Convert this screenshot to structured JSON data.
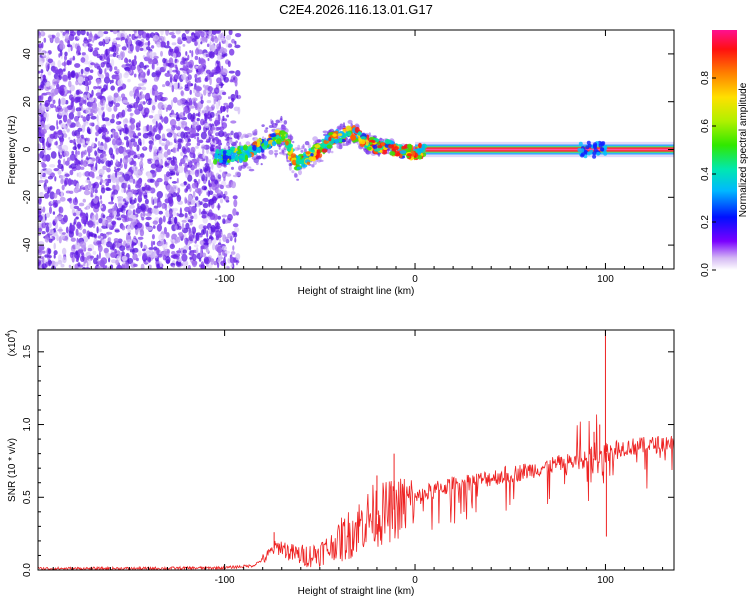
{
  "title": "C2E4.2026.116.13.01.G17",
  "chart_data": [
    {
      "type": "heatmap",
      "title": "C2E4.2026.116.13.01.G17",
      "xlabel": "Height of straight line (km)",
      "ylabel": "Frequency (Hz)",
      "xlim": [
        -198,
        136
      ],
      "ylim": [
        -50,
        50
      ],
      "xticks": [
        -100,
        0,
        100
      ],
      "xtick_labels": [
        "-100",
        "0",
        "100"
      ],
      "yticks": [
        -40,
        -20,
        0,
        20,
        40
      ],
      "ytick_labels": [
        "-40",
        "-20",
        "0",
        "20",
        "40"
      ],
      "noise_region_x": [
        -198,
        -92
      ],
      "signal_track": {
        "x": [
          -110,
          -100,
          -95,
          -90,
          -85,
          -80,
          -75,
          -70,
          -68,
          -65,
          -62,
          -60,
          -57,
          -54,
          -50,
          -46,
          -42,
          -38,
          -34,
          -30,
          -26,
          -22,
          -18,
          -14,
          -10,
          -6,
          -2,
          2,
          6,
          10,
          20,
          40,
          60,
          80,
          100,
          120,
          136
        ],
        "y": [
          -3,
          -3,
          -2,
          -2,
          0,
          2,
          4,
          6,
          5,
          -2,
          -6,
          -5,
          -4,
          -2,
          0,
          3,
          5,
          6,
          7,
          6,
          3,
          2,
          1,
          1,
          0,
          -1,
          -1,
          -1,
          0,
          0,
          0,
          0,
          0,
          0,
          0,
          0,
          0
        ]
      },
      "colorbar": {
        "label": "Normalized spectral amplitude",
        "range": [
          0.0,
          1.0
        ],
        "ticks": [
          0.0,
          0.2,
          0.4,
          0.6,
          0.8
        ],
        "tick_labels": [
          "0.0",
          "0.2",
          "0.4",
          "0.6",
          "0.8"
        ]
      }
    },
    {
      "type": "line",
      "xlabel": "Height of straight line (km)",
      "ylabel": "SNR (10 * v/v)",
      "exponent_label": "(x10",
      "exponent_power": "4",
      "xlim": [
        -198,
        136
      ],
      "ylim": [
        0.0,
        1.65
      ],
      "xticks": [
        -100,
        0,
        100
      ],
      "xtick_labels": [
        "-100",
        "0",
        "100"
      ],
      "yticks": [
        0.0,
        0.5,
        1.0,
        1.5
      ],
      "ytick_labels": [
        "0.0",
        "0.5",
        "1.0",
        "1.5"
      ],
      "color": "#ee2222",
      "series": [
        {
          "name": "SNR",
          "x": [
            -198,
            -150,
            -100,
            -85,
            -78,
            -74,
            -70,
            -66,
            -60,
            -55,
            -50,
            -45,
            -40,
            -35,
            -30,
            -26,
            -22,
            -18,
            -14,
            -10,
            -6,
            -2,
            2,
            8,
            15,
            25,
            35,
            45,
            55,
            65,
            75,
            85,
            90,
            95,
            98,
            100,
            102,
            104,
            108,
            115,
            125,
            136
          ],
          "values": [
            0.01,
            0.01,
            0.015,
            0.03,
            0.09,
            0.15,
            0.16,
            0.12,
            0.1,
            0.1,
            0.12,
            0.15,
            0.2,
            0.24,
            0.3,
            0.34,
            0.38,
            0.38,
            0.4,
            0.42,
            0.44,
            0.47,
            0.5,
            0.54,
            0.57,
            0.6,
            0.62,
            0.65,
            0.67,
            0.7,
            0.73,
            0.75,
            0.76,
            0.78,
            0.8,
            0.8,
            0.82,
            0.84,
            0.84,
            0.85,
            0.86,
            0.88
          ]
        }
      ],
      "spikes": [
        {
          "x": -74,
          "value": 0.26
        },
        {
          "x": -20,
          "value": 0.65
        },
        {
          "x": -11,
          "value": 0.8
        },
        {
          "x": 100,
          "value": 1.65
        },
        {
          "x": 100.5,
          "value": 0.23
        },
        {
          "x": 97,
          "value": 1.0
        },
        {
          "x": 94,
          "value": 0.95
        }
      ]
    }
  ]
}
